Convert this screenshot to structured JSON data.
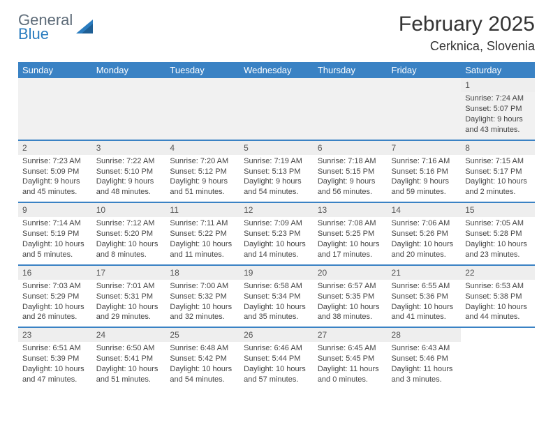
{
  "logo": {
    "top": "General",
    "bottom": "Blue"
  },
  "title": "February 2025",
  "location": "Cerknica, Slovenia",
  "colors": {
    "header_bg": "#3a82c4",
    "header_text": "#ffffff",
    "row_divider": "#3a82c4",
    "alt_row_bg": "#f1f1f1",
    "daynum_bg": "#eeeeee",
    "logo_gray": "#5d6b78",
    "logo_blue": "#2a7cbf"
  },
  "daysOfWeek": [
    "Sunday",
    "Monday",
    "Tuesday",
    "Wednesday",
    "Thursday",
    "Friday",
    "Saturday"
  ],
  "weeks": [
    [
      {},
      {},
      {},
      {},
      {},
      {},
      {
        "n": "1",
        "sr": "Sunrise: 7:24 AM",
        "ss": "Sunset: 5:07 PM",
        "dl1": "Daylight: 9 hours",
        "dl2": "and 43 minutes."
      }
    ],
    [
      {
        "n": "2",
        "sr": "Sunrise: 7:23 AM",
        "ss": "Sunset: 5:09 PM",
        "dl1": "Daylight: 9 hours",
        "dl2": "and 45 minutes."
      },
      {
        "n": "3",
        "sr": "Sunrise: 7:22 AM",
        "ss": "Sunset: 5:10 PM",
        "dl1": "Daylight: 9 hours",
        "dl2": "and 48 minutes."
      },
      {
        "n": "4",
        "sr": "Sunrise: 7:20 AM",
        "ss": "Sunset: 5:12 PM",
        "dl1": "Daylight: 9 hours",
        "dl2": "and 51 minutes."
      },
      {
        "n": "5",
        "sr": "Sunrise: 7:19 AM",
        "ss": "Sunset: 5:13 PM",
        "dl1": "Daylight: 9 hours",
        "dl2": "and 54 minutes."
      },
      {
        "n": "6",
        "sr": "Sunrise: 7:18 AM",
        "ss": "Sunset: 5:15 PM",
        "dl1": "Daylight: 9 hours",
        "dl2": "and 56 minutes."
      },
      {
        "n": "7",
        "sr": "Sunrise: 7:16 AM",
        "ss": "Sunset: 5:16 PM",
        "dl1": "Daylight: 9 hours",
        "dl2": "and 59 minutes."
      },
      {
        "n": "8",
        "sr": "Sunrise: 7:15 AM",
        "ss": "Sunset: 5:17 PM",
        "dl1": "Daylight: 10 hours",
        "dl2": "and 2 minutes."
      }
    ],
    [
      {
        "n": "9",
        "sr": "Sunrise: 7:14 AM",
        "ss": "Sunset: 5:19 PM",
        "dl1": "Daylight: 10 hours",
        "dl2": "and 5 minutes."
      },
      {
        "n": "10",
        "sr": "Sunrise: 7:12 AM",
        "ss": "Sunset: 5:20 PM",
        "dl1": "Daylight: 10 hours",
        "dl2": "and 8 minutes."
      },
      {
        "n": "11",
        "sr": "Sunrise: 7:11 AM",
        "ss": "Sunset: 5:22 PM",
        "dl1": "Daylight: 10 hours",
        "dl2": "and 11 minutes."
      },
      {
        "n": "12",
        "sr": "Sunrise: 7:09 AM",
        "ss": "Sunset: 5:23 PM",
        "dl1": "Daylight: 10 hours",
        "dl2": "and 14 minutes."
      },
      {
        "n": "13",
        "sr": "Sunrise: 7:08 AM",
        "ss": "Sunset: 5:25 PM",
        "dl1": "Daylight: 10 hours",
        "dl2": "and 17 minutes."
      },
      {
        "n": "14",
        "sr": "Sunrise: 7:06 AM",
        "ss": "Sunset: 5:26 PM",
        "dl1": "Daylight: 10 hours",
        "dl2": "and 20 minutes."
      },
      {
        "n": "15",
        "sr": "Sunrise: 7:05 AM",
        "ss": "Sunset: 5:28 PM",
        "dl1": "Daylight: 10 hours",
        "dl2": "and 23 minutes."
      }
    ],
    [
      {
        "n": "16",
        "sr": "Sunrise: 7:03 AM",
        "ss": "Sunset: 5:29 PM",
        "dl1": "Daylight: 10 hours",
        "dl2": "and 26 minutes."
      },
      {
        "n": "17",
        "sr": "Sunrise: 7:01 AM",
        "ss": "Sunset: 5:31 PM",
        "dl1": "Daylight: 10 hours",
        "dl2": "and 29 minutes."
      },
      {
        "n": "18",
        "sr": "Sunrise: 7:00 AM",
        "ss": "Sunset: 5:32 PM",
        "dl1": "Daylight: 10 hours",
        "dl2": "and 32 minutes."
      },
      {
        "n": "19",
        "sr": "Sunrise: 6:58 AM",
        "ss": "Sunset: 5:34 PM",
        "dl1": "Daylight: 10 hours",
        "dl2": "and 35 minutes."
      },
      {
        "n": "20",
        "sr": "Sunrise: 6:57 AM",
        "ss": "Sunset: 5:35 PM",
        "dl1": "Daylight: 10 hours",
        "dl2": "and 38 minutes."
      },
      {
        "n": "21",
        "sr": "Sunrise: 6:55 AM",
        "ss": "Sunset: 5:36 PM",
        "dl1": "Daylight: 10 hours",
        "dl2": "and 41 minutes."
      },
      {
        "n": "22",
        "sr": "Sunrise: 6:53 AM",
        "ss": "Sunset: 5:38 PM",
        "dl1": "Daylight: 10 hours",
        "dl2": "and 44 minutes."
      }
    ],
    [
      {
        "n": "23",
        "sr": "Sunrise: 6:51 AM",
        "ss": "Sunset: 5:39 PM",
        "dl1": "Daylight: 10 hours",
        "dl2": "and 47 minutes."
      },
      {
        "n": "24",
        "sr": "Sunrise: 6:50 AM",
        "ss": "Sunset: 5:41 PM",
        "dl1": "Daylight: 10 hours",
        "dl2": "and 51 minutes."
      },
      {
        "n": "25",
        "sr": "Sunrise: 6:48 AM",
        "ss": "Sunset: 5:42 PM",
        "dl1": "Daylight: 10 hours",
        "dl2": "and 54 minutes."
      },
      {
        "n": "26",
        "sr": "Sunrise: 6:46 AM",
        "ss": "Sunset: 5:44 PM",
        "dl1": "Daylight: 10 hours",
        "dl2": "and 57 minutes."
      },
      {
        "n": "27",
        "sr": "Sunrise: 6:45 AM",
        "ss": "Sunset: 5:45 PM",
        "dl1": "Daylight: 11 hours",
        "dl2": "and 0 minutes."
      },
      {
        "n": "28",
        "sr": "Sunrise: 6:43 AM",
        "ss": "Sunset: 5:46 PM",
        "dl1": "Daylight: 11 hours",
        "dl2": "and 3 minutes."
      },
      {}
    ]
  ]
}
